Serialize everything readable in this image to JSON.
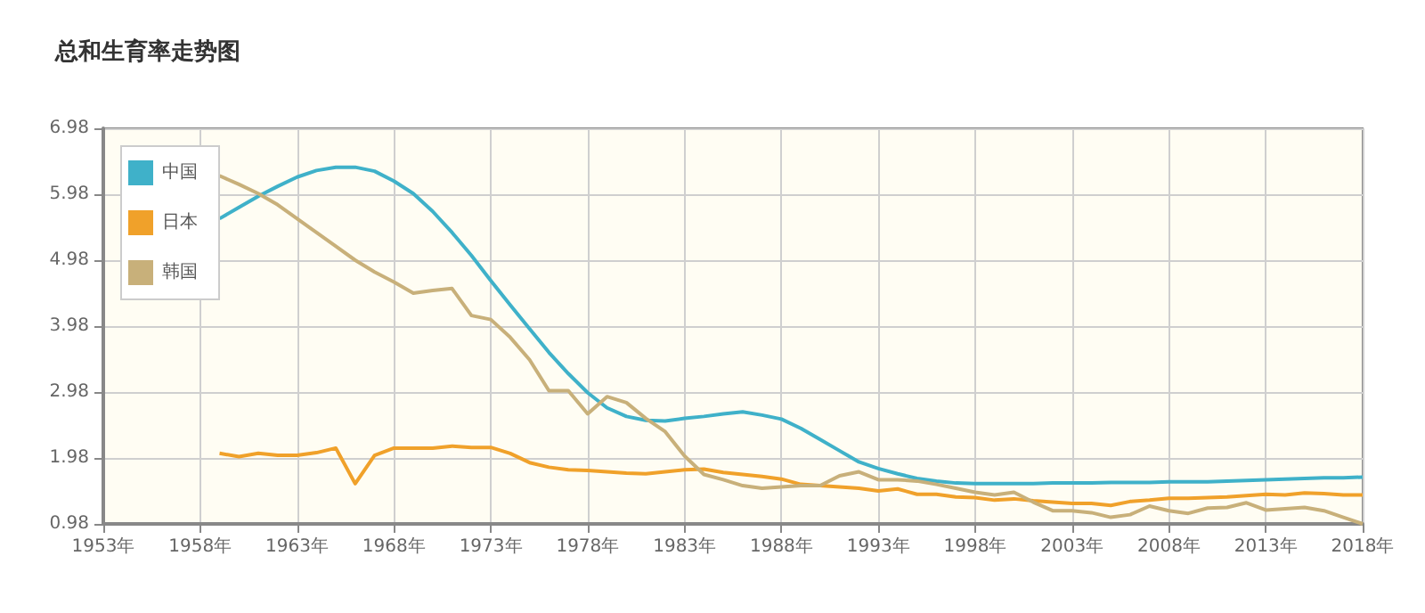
{
  "chart_data": {
    "type": "line",
    "title": "总和生育率走势图",
    "x": [
      1959,
      1960,
      1961,
      1962,
      1963,
      1964,
      1965,
      1966,
      1967,
      1968,
      1969,
      1970,
      1971,
      1972,
      1973,
      1974,
      1975,
      1976,
      1977,
      1978,
      1979,
      1980,
      1981,
      1982,
      1983,
      1984,
      1985,
      1986,
      1987,
      1988,
      1989,
      1990,
      1991,
      1992,
      1993,
      1994,
      1995,
      1996,
      1997,
      1998,
      1999,
      2000,
      2001,
      2002,
      2003,
      2004,
      2005,
      2006,
      2007,
      2008,
      2009,
      2010,
      2011,
      2012,
      2013,
      2014,
      2015,
      2016,
      2017,
      2018
    ],
    "series": [
      {
        "name": "中国",
        "color": "#3fb1c9",
        "values": [
          5.61,
          5.78,
          5.95,
          6.1,
          6.24,
          6.34,
          6.39,
          6.39,
          6.33,
          6.18,
          5.99,
          5.72,
          5.4,
          5.05,
          4.67,
          4.3,
          3.94,
          3.58,
          3.26,
          2.97,
          2.74,
          2.61,
          2.55,
          2.54,
          2.58,
          2.61,
          2.65,
          2.68,
          2.63,
          2.57,
          2.43,
          2.26,
          2.09,
          1.92,
          1.82,
          1.74,
          1.67,
          1.63,
          1.6,
          1.59,
          1.59,
          1.59,
          1.59,
          1.6,
          1.6,
          1.6,
          1.61,
          1.61,
          1.61,
          1.62,
          1.62,
          1.62,
          1.63,
          1.64,
          1.65,
          1.66,
          1.67,
          1.68,
          1.68,
          1.69
        ]
      },
      {
        "name": "日本",
        "color": "#f0a12a",
        "values": [
          2.05,
          2.0,
          2.05,
          2.02,
          2.02,
          2.06,
          2.13,
          1.59,
          2.02,
          2.13,
          2.13,
          2.13,
          2.16,
          2.14,
          2.14,
          2.05,
          1.91,
          1.84,
          1.8,
          1.79,
          1.77,
          1.75,
          1.74,
          1.77,
          1.8,
          1.81,
          1.76,
          1.73,
          1.7,
          1.66,
          1.58,
          1.56,
          1.54,
          1.52,
          1.48,
          1.51,
          1.43,
          1.43,
          1.39,
          1.38,
          1.34,
          1.36,
          1.33,
          1.31,
          1.29,
          1.29,
          1.26,
          1.32,
          1.34,
          1.37,
          1.37,
          1.38,
          1.39,
          1.41,
          1.43,
          1.42,
          1.45,
          1.44,
          1.42,
          1.42
        ]
      },
      {
        "name": "韩国",
        "color": "#c8b07a",
        "values": [
          6.26,
          6.13,
          5.99,
          5.82,
          5.61,
          5.4,
          5.19,
          4.98,
          4.8,
          4.65,
          4.48,
          4.52,
          4.55,
          4.14,
          4.08,
          3.81,
          3.47,
          3.0,
          3.0,
          2.65,
          2.91,
          2.82,
          2.58,
          2.38,
          2.01,
          1.73,
          1.65,
          1.56,
          1.52,
          1.54,
          1.56,
          1.56,
          1.71,
          1.77,
          1.65,
          1.65,
          1.63,
          1.58,
          1.52,
          1.46,
          1.42,
          1.46,
          1.31,
          1.18,
          1.18,
          1.15,
          1.08,
          1.12,
          1.25,
          1.18,
          1.14,
          1.22,
          1.23,
          1.3,
          1.19,
          1.21,
          1.23,
          1.18,
          1.08,
          0.98
        ]
      }
    ],
    "xlim": [
      1953,
      2018
    ],
    "xticks": [
      {
        "value": 1953,
        "label": "1953年"
      },
      {
        "value": 1958,
        "label": "1958年"
      },
      {
        "value": 1963,
        "label": "1963年"
      },
      {
        "value": 1968,
        "label": "1968年"
      },
      {
        "value": 1973,
        "label": "1973年"
      },
      {
        "value": 1978,
        "label": "1978年"
      },
      {
        "value": 1983,
        "label": "1983年"
      },
      {
        "value": 1988,
        "label": "1988年"
      },
      {
        "value": 1993,
        "label": "1993年"
      },
      {
        "value": 1998,
        "label": "1998年"
      },
      {
        "value": 2003,
        "label": "2003年"
      },
      {
        "value": 2008,
        "label": "2008年"
      },
      {
        "value": 2013,
        "label": "2013年"
      },
      {
        "value": 2018,
        "label": "2018年"
      }
    ],
    "ylim": [
      0.98,
      6.98
    ],
    "yticks": [
      0.98,
      1.98,
      2.98,
      3.98,
      4.98,
      5.98,
      6.98
    ],
    "grid": true,
    "legend": "top left",
    "marker": "none",
    "line_style": "solid"
  }
}
